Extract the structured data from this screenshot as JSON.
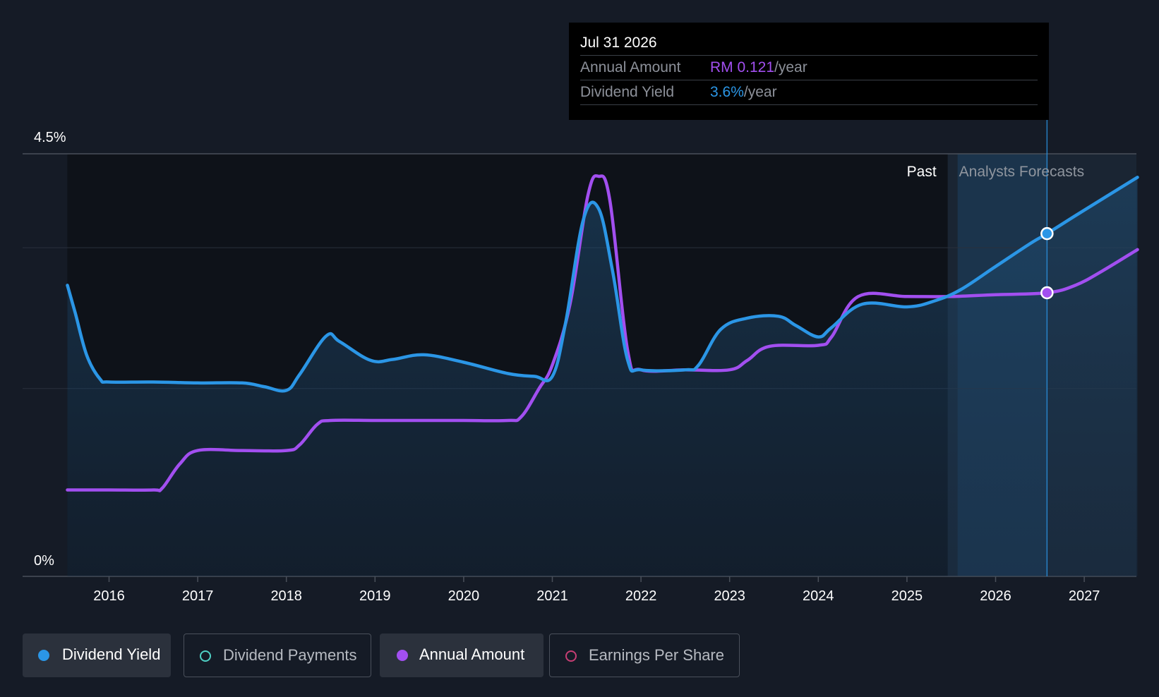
{
  "chart_data": {
    "type": "line",
    "x_unit": "year",
    "y_tick_labels": [
      "4.5%",
      "0%"
    ],
    "ylim": [
      0,
      4.5
    ],
    "xlim": [
      2015.0,
      2027.6
    ],
    "x_tick_labels": [
      "2016",
      "2017",
      "2018",
      "2019",
      "2020",
      "2021",
      "2022",
      "2023",
      "2024",
      "2025",
      "2026",
      "2027"
    ],
    "x_ticks": [
      2016,
      2017,
      2018,
      2019,
      2020,
      2021,
      2022,
      2023,
      2024,
      2025,
      2026,
      2027
    ],
    "past_label": "Past",
    "forecast_label": "Analysts Forecasts",
    "forecast_start": 2025.46,
    "forecast_band_end": 2026.58,
    "grid": true,
    "series": [
      {
        "name": "Dividend Yield",
        "color": "#2b96e6",
        "filled": true,
        "x": [
          2015.53,
          2015.62,
          2015.75,
          2015.9,
          2016.0,
          2016.5,
          2017.0,
          2017.5,
          2017.75,
          2018.0,
          2018.15,
          2018.45,
          2018.6,
          2018.95,
          2019.2,
          2019.55,
          2020.0,
          2020.5,
          2020.8,
          2021.0,
          2021.15,
          2021.35,
          2021.52,
          2021.68,
          2021.85,
          2022.0,
          2022.5,
          2022.65,
          2022.9,
          2023.2,
          2023.55,
          2023.75,
          2024.0,
          2024.15,
          2024.5,
          2025.0,
          2025.3,
          2025.6,
          2026.0,
          2026.4,
          2026.58,
          2027.0,
          2027.6
        ],
        "y": [
          3.1,
          2.8,
          2.35,
          2.1,
          2.07,
          2.07,
          2.06,
          2.06,
          2.02,
          1.98,
          2.15,
          2.56,
          2.5,
          2.3,
          2.31,
          2.36,
          2.28,
          2.16,
          2.13,
          2.13,
          2.7,
          3.8,
          3.92,
          3.25,
          2.3,
          2.2,
          2.2,
          2.25,
          2.63,
          2.75,
          2.77,
          2.67,
          2.55,
          2.65,
          2.9,
          2.87,
          2.93,
          3.05,
          3.3,
          3.55,
          3.65,
          3.9,
          4.25
        ]
      },
      {
        "name": "Annual Amount",
        "color": "#a24ff0",
        "filled": false,
        "x": [
          2015.53,
          2016.0,
          2016.5,
          2016.6,
          2016.8,
          2017.0,
          2017.5,
          2018.0,
          2018.15,
          2018.35,
          2018.5,
          2019.0,
          2019.5,
          2020.0,
          2020.5,
          2020.65,
          2020.85,
          2021.0,
          2021.2,
          2021.4,
          2021.52,
          2021.65,
          2021.85,
          2022.0,
          2022.5,
          2023.0,
          2023.2,
          2023.45,
          2024.0,
          2024.15,
          2024.45,
          2025.0,
          2025.5,
          2026.0,
          2026.58,
          2026.9,
          2027.2,
          2027.6
        ],
        "y": [
          0.92,
          0.92,
          0.92,
          0.94,
          1.2,
          1.34,
          1.34,
          1.34,
          1.4,
          1.62,
          1.66,
          1.66,
          1.66,
          1.66,
          1.66,
          1.7,
          2.0,
          2.25,
          2.9,
          4.05,
          4.26,
          4.0,
          2.4,
          2.2,
          2.2,
          2.2,
          2.3,
          2.45,
          2.46,
          2.55,
          2.98,
          2.98,
          2.98,
          3.0,
          3.02,
          3.1,
          3.25,
          3.48
        ]
      }
    ],
    "highlight": {
      "x": 2026.58,
      "yield_y": 3.65,
      "amount_y": 3.02
    }
  },
  "tooltip": {
    "date": "Jul 31 2026",
    "rows": [
      {
        "label": "Annual Amount",
        "value": "RM 0.121",
        "unit": "/year"
      },
      {
        "label": "Dividend Yield",
        "value": "3.6%",
        "unit": "/year"
      }
    ]
  },
  "legend": [
    {
      "label": "Dividend Yield",
      "color": "#2b96e6",
      "active": true
    },
    {
      "label": "Dividend Payments",
      "color": "#4fd1c5",
      "active": false
    },
    {
      "label": "Annual Amount",
      "color": "#a24ff0",
      "active": true
    },
    {
      "label": "Earnings Per Share",
      "color": "#c73e74",
      "active": false
    }
  ]
}
